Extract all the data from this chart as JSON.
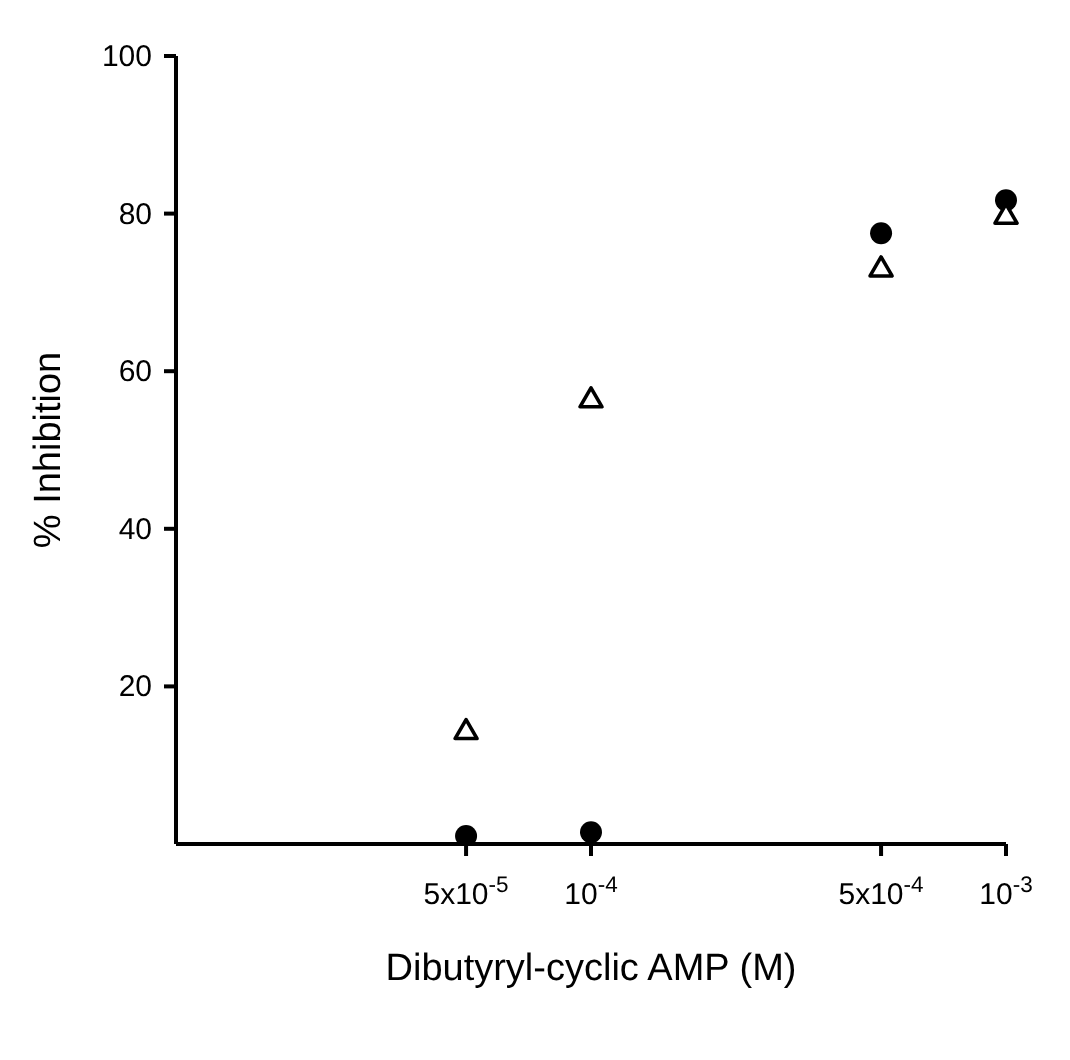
{
  "chart_data": {
    "type": "scatter",
    "xlabel": "Dibutyryl-cyclic AMP (M)",
    "ylabel": "% Inhibition",
    "log": "x",
    "x": [
      5e-05,
      0.0001,
      0.0005,
      0.001
    ],
    "series": [
      {
        "color": "#000000",
        "marker": "circle",
        "values": [
          1,
          1.5,
          77.5,
          81.7
        ]
      },
      {
        "color": "#000000",
        "marker": "triangle",
        "values": [
          14.4,
          56.5,
          73.1,
          79.8
        ]
      }
    ],
    "xlim": [
      1e-05,
      0.001
    ],
    "xticks": [
      {
        "value": 5e-05,
        "label": "5x10$^{-5}$"
      },
      {
        "value": 0.0001,
        "label": "10$^{-4}$"
      },
      {
        "value": 0.0005,
        "label": "5x10$^{-4}$"
      },
      {
        "value": 0.001,
        "label": "10$^{-3}$"
      }
    ],
    "ylim": [
      0,
      100
    ],
    "yticks": [
      20,
      40,
      60,
      80,
      100
    ],
    "grid": false,
    "legend": false
  }
}
